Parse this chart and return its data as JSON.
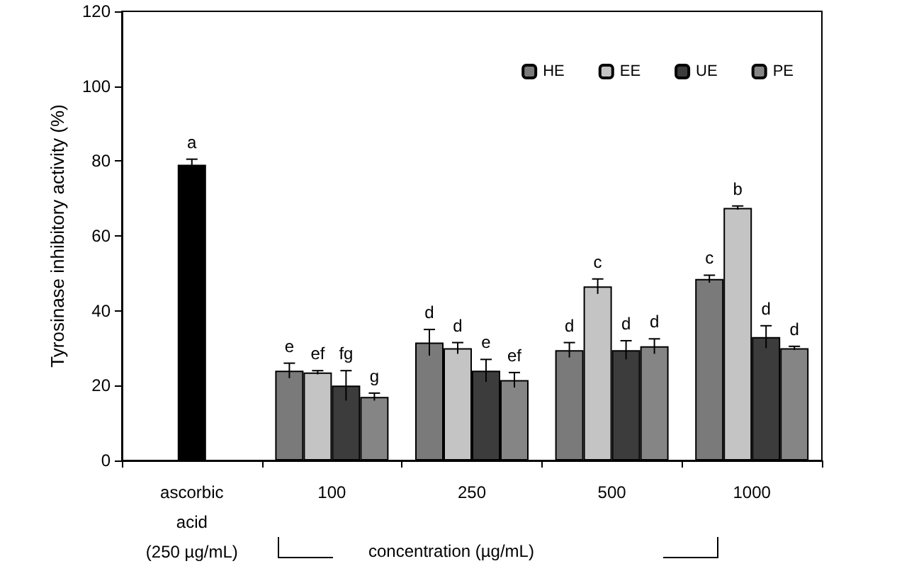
{
  "chart_data": {
    "type": "bar",
    "ylabel": "Tyrosinase inhibitory activity (%)",
    "xlabel": "concentration (µg/mL)",
    "categories": [
      "ascorbic\nacid\n(250 µg/mL)",
      "100",
      "250",
      "500",
      "1000"
    ],
    "series": [
      {
        "color": "#000000",
        "values": [
          79,
          null,
          null,
          null,
          null
        ],
        "errors": [
          1.5,
          null,
          null,
          null,
          null
        ],
        "value_labels": [
          "a",
          null,
          null,
          null,
          null
        ]
      },
      {
        "name": "HE",
        "color": "#7a7a7a",
        "values": [
          null,
          24,
          31.5,
          29.5,
          48.5
        ],
        "errors": [
          null,
          2,
          3.5,
          2,
          1
        ],
        "value_labels": [
          null,
          "e",
          "d",
          "d",
          "c"
        ]
      },
      {
        "name": "EE",
        "color": "#c4c4c4",
        "values": [
          null,
          23.5,
          30,
          46.5,
          67.5
        ],
        "errors": [
          null,
          0.5,
          1.5,
          2,
          0.5
        ],
        "value_labels": [
          null,
          "ef",
          "d",
          "c",
          "b"
        ]
      },
      {
        "name": "UE",
        "color": "#3c3c3c",
        "values": [
          null,
          20,
          24,
          29.5,
          33
        ],
        "errors": [
          null,
          4,
          3,
          2.5,
          3
        ],
        "value_labels": [
          null,
          "fg",
          "e",
          "d",
          "d"
        ]
      },
      {
        "name": "PE",
        "color": "#858585",
        "values": [
          null,
          17,
          21.5,
          30.5,
          30
        ],
        "errors": [
          null,
          1,
          2,
          2,
          0.5
        ],
        "value_labels": [
          null,
          "g",
          "ef",
          "d",
          "d"
        ]
      }
    ],
    "ylim": [
      0,
      120
    ],
    "yticks": [
      0,
      20,
      40,
      60,
      80,
      100,
      120
    ],
    "grid": false,
    "legend": "top right"
  }
}
